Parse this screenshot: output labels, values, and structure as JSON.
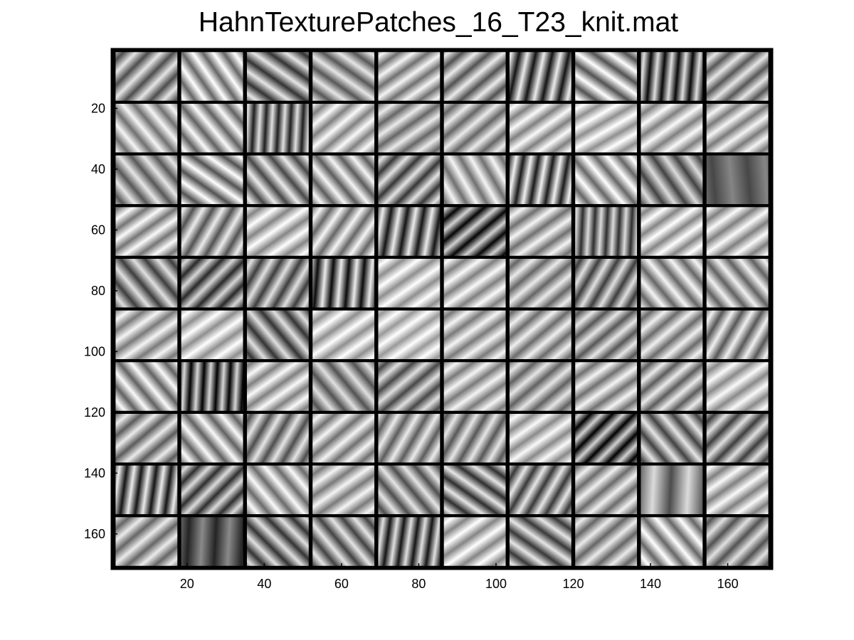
{
  "figure": {
    "title": "HahnTexturePatches_16_T23_knit.mat"
  },
  "chart_data": {
    "type": "heatmap",
    "title": "HahnTexturePatches_16_T23_knit.mat",
    "xlabel": "",
    "ylabel": "",
    "xlim": [
      0.5,
      171.5
    ],
    "ylim": [
      0.5,
      171.5
    ],
    "y_reversed": true,
    "x_ticks": [
      20,
      40,
      60,
      80,
      100,
      120,
      140,
      160
    ],
    "y_ticks": [
      20,
      40,
      60,
      80,
      100,
      120,
      140,
      160
    ],
    "x_tick_labels": [
      "20",
      "40",
      "60",
      "80",
      "100",
      "120",
      "140",
      "160"
    ],
    "y_tick_labels": [
      "20",
      "40",
      "60",
      "80",
      "100",
      "120",
      "140",
      "160"
    ],
    "colormap": "gray",
    "grid": {
      "rows": 10,
      "cols": 10,
      "patch_size": 16,
      "separator": 1
    },
    "grid_lines": false,
    "separator_color": "#000000",
    "patches": [
      [
        {
          "angle": 45,
          "wl": 4.6,
          "c": 0.3,
          "m": 0.6
        },
        {
          "angle": -35,
          "wl": 4.4,
          "c": 0.32,
          "m": 0.72
        },
        {
          "angle": -55,
          "wl": 4.8,
          "c": 0.35,
          "m": 0.55
        },
        {
          "angle": -55,
          "wl": 4.6,
          "c": 0.28,
          "m": 0.62
        },
        {
          "angle": 55,
          "wl": 4.4,
          "c": 0.26,
          "m": 0.7
        },
        {
          "angle": 50,
          "wl": 4.6,
          "c": 0.3,
          "m": 0.62
        },
        {
          "angle": 12,
          "wl": 4.2,
          "c": 0.42,
          "m": 0.5
        },
        {
          "angle": -55,
          "wl": 4.8,
          "c": 0.36,
          "m": 0.68
        },
        {
          "angle": 5,
          "wl": 3.6,
          "c": 0.42,
          "m": 0.45
        },
        {
          "angle": 50,
          "wl": 4.4,
          "c": 0.28,
          "m": 0.62
        }
      ],
      [
        {
          "angle": -40,
          "wl": 4.6,
          "c": 0.26,
          "m": 0.7
        },
        {
          "angle": -40,
          "wl": 4.6,
          "c": 0.3,
          "m": 0.68
        },
        {
          "angle": 3,
          "wl": 3.2,
          "c": 0.38,
          "m": 0.5
        },
        {
          "angle": 50,
          "wl": 4.4,
          "c": 0.24,
          "m": 0.74
        },
        {
          "angle": 55,
          "wl": 4.6,
          "c": 0.26,
          "m": 0.66
        },
        {
          "angle": 50,
          "wl": 4.6,
          "c": 0.26,
          "m": 0.66
        },
        {
          "angle": 55,
          "wl": 4.4,
          "c": 0.24,
          "m": 0.74
        },
        {
          "angle": 60,
          "wl": 4.4,
          "c": 0.22,
          "m": 0.78
        },
        {
          "angle": 55,
          "wl": 4.6,
          "c": 0.24,
          "m": 0.74
        },
        {
          "angle": 55,
          "wl": 4.4,
          "c": 0.24,
          "m": 0.72
        }
      ],
      [
        {
          "angle": -40,
          "wl": 4.8,
          "c": 0.28,
          "m": 0.62
        },
        {
          "angle": -55,
          "wl": 4.6,
          "c": 0.34,
          "m": 0.66
        },
        {
          "angle": -40,
          "wl": 4.6,
          "c": 0.32,
          "m": 0.6
        },
        {
          "angle": -40,
          "wl": 4.6,
          "c": 0.3,
          "m": 0.66
        },
        {
          "angle": 45,
          "wl": 4.4,
          "c": 0.34,
          "m": 0.55
        },
        {
          "angle": -30,
          "wl": 4.6,
          "c": 0.26,
          "m": 0.7
        },
        {
          "angle": 10,
          "wl": 3.8,
          "c": 0.42,
          "m": 0.52
        },
        {
          "angle": -40,
          "wl": 4.6,
          "c": 0.3,
          "m": 0.7
        },
        {
          "angle": -35,
          "wl": 4.8,
          "c": 0.3,
          "m": 0.56
        },
        {
          "angle": -5,
          "wl": 9.0,
          "c": 0.12,
          "m": 0.4
        }
      ],
      [
        {
          "angle": 55,
          "wl": 4.4,
          "c": 0.26,
          "m": 0.72
        },
        {
          "angle": 30,
          "wl": 4.4,
          "c": 0.3,
          "m": 0.62
        },
        {
          "angle": 55,
          "wl": 4.6,
          "c": 0.24,
          "m": 0.76
        },
        {
          "angle": 35,
          "wl": 4.4,
          "c": 0.28,
          "m": 0.68
        },
        {
          "angle": 10,
          "wl": 4.2,
          "c": 0.42,
          "m": 0.5
        },
        {
          "angle": 50,
          "wl": 4.2,
          "c": 0.4,
          "m": 0.42
        },
        {
          "angle": 55,
          "wl": 4.6,
          "c": 0.26,
          "m": 0.7
        },
        {
          "angle": 3,
          "wl": 3.2,
          "c": 0.34,
          "m": 0.52
        },
        {
          "angle": 55,
          "wl": 4.4,
          "c": 0.24,
          "m": 0.76
        },
        {
          "angle": 55,
          "wl": 4.6,
          "c": 0.24,
          "m": 0.74
        }
      ],
      [
        {
          "angle": -40,
          "wl": 4.8,
          "c": 0.32,
          "m": 0.56
        },
        {
          "angle": 45,
          "wl": 4.2,
          "c": 0.34,
          "m": 0.5
        },
        {
          "angle": 30,
          "wl": 4.4,
          "c": 0.32,
          "m": 0.56
        },
        {
          "angle": 5,
          "wl": 4.0,
          "c": 0.44,
          "m": 0.48
        },
        {
          "angle": 55,
          "wl": 4.6,
          "c": 0.22,
          "m": 0.78
        },
        {
          "angle": 55,
          "wl": 4.6,
          "c": 0.24,
          "m": 0.74
        },
        {
          "angle": 50,
          "wl": 4.6,
          "c": 0.26,
          "m": 0.66
        },
        {
          "angle": 30,
          "wl": 4.2,
          "c": 0.32,
          "m": 0.56
        },
        {
          "angle": -40,
          "wl": 4.6,
          "c": 0.28,
          "m": 0.68
        },
        {
          "angle": -40,
          "wl": 4.6,
          "c": 0.28,
          "m": 0.66
        }
      ],
      [
        {
          "angle": 55,
          "wl": 4.6,
          "c": 0.24,
          "m": 0.72
        },
        {
          "angle": 55,
          "wl": 4.6,
          "c": 0.22,
          "m": 0.78
        },
        {
          "angle": -40,
          "wl": 4.8,
          "c": 0.34,
          "m": 0.54
        },
        {
          "angle": 55,
          "wl": 4.6,
          "c": 0.22,
          "m": 0.78
        },
        {
          "angle": 55,
          "wl": 4.4,
          "c": 0.2,
          "m": 0.8
        },
        {
          "angle": 55,
          "wl": 4.6,
          "c": 0.24,
          "m": 0.72
        },
        {
          "angle": 50,
          "wl": 4.6,
          "c": 0.26,
          "m": 0.68
        },
        {
          "angle": 50,
          "wl": 4.4,
          "c": 0.28,
          "m": 0.62
        },
        {
          "angle": 50,
          "wl": 4.6,
          "c": 0.26,
          "m": 0.68
        },
        {
          "angle": 30,
          "wl": 4.4,
          "c": 0.3,
          "m": 0.64
        }
      ],
      [
        {
          "angle": -40,
          "wl": 4.6,
          "c": 0.3,
          "m": 0.68
        },
        {
          "angle": 3,
          "wl": 3.4,
          "c": 0.42,
          "m": 0.42
        },
        {
          "angle": 55,
          "wl": 4.4,
          "c": 0.24,
          "m": 0.74
        },
        {
          "angle": -40,
          "wl": 4.8,
          "c": 0.28,
          "m": 0.6
        },
        {
          "angle": 50,
          "wl": 4.4,
          "c": 0.3,
          "m": 0.58
        },
        {
          "angle": 55,
          "wl": 4.6,
          "c": 0.24,
          "m": 0.72
        },
        {
          "angle": 50,
          "wl": 4.6,
          "c": 0.26,
          "m": 0.64
        },
        {
          "angle": 55,
          "wl": 4.6,
          "c": 0.26,
          "m": 0.7
        },
        {
          "angle": 50,
          "wl": 4.4,
          "c": 0.28,
          "m": 0.64
        },
        {
          "angle": 55,
          "wl": 4.6,
          "c": 0.22,
          "m": 0.76
        }
      ],
      [
        {
          "angle": 50,
          "wl": 4.6,
          "c": 0.28,
          "m": 0.64
        },
        {
          "angle": -40,
          "wl": 4.6,
          "c": 0.3,
          "m": 0.68
        },
        {
          "angle": 30,
          "wl": 4.4,
          "c": 0.3,
          "m": 0.6
        },
        {
          "angle": 50,
          "wl": 4.6,
          "c": 0.26,
          "m": 0.7
        },
        {
          "angle": 30,
          "wl": 4.4,
          "c": 0.28,
          "m": 0.64
        },
        {
          "angle": 30,
          "wl": 4.4,
          "c": 0.28,
          "m": 0.62
        },
        {
          "angle": 55,
          "wl": 4.4,
          "c": 0.22,
          "m": 0.76
        },
        {
          "angle": 45,
          "wl": 4.0,
          "c": 0.42,
          "m": 0.4
        },
        {
          "angle": -40,
          "wl": 4.6,
          "c": 0.32,
          "m": 0.58
        },
        {
          "angle": 45,
          "wl": 4.4,
          "c": 0.32,
          "m": 0.56
        }
      ],
      [
        {
          "angle": 8,
          "wl": 3.8,
          "c": 0.42,
          "m": 0.5
        },
        {
          "angle": 45,
          "wl": 4.2,
          "c": 0.34,
          "m": 0.52
        },
        {
          "angle": -40,
          "wl": 4.6,
          "c": 0.28,
          "m": 0.7
        },
        {
          "angle": 55,
          "wl": 4.6,
          "c": 0.24,
          "m": 0.72
        },
        {
          "angle": -40,
          "wl": 4.6,
          "c": 0.3,
          "m": 0.6
        },
        {
          "angle": -55,
          "wl": 4.4,
          "c": 0.36,
          "m": 0.54
        },
        {
          "angle": 30,
          "wl": 4.2,
          "c": 0.34,
          "m": 0.56
        },
        {
          "angle": 50,
          "wl": 4.6,
          "c": 0.26,
          "m": 0.68
        },
        {
          "angle": 3,
          "wl": 9.0,
          "c": 0.28,
          "m": 0.58
        },
        {
          "angle": 55,
          "wl": 4.6,
          "c": 0.24,
          "m": 0.74
        }
      ],
      [
        {
          "angle": 50,
          "wl": 4.6,
          "c": 0.26,
          "m": 0.66
        },
        {
          "angle": 3,
          "wl": 7.0,
          "c": 0.2,
          "m": 0.34
        },
        {
          "angle": -45,
          "wl": 4.6,
          "c": 0.34,
          "m": 0.54
        },
        {
          "angle": -40,
          "wl": 4.6,
          "c": 0.32,
          "m": 0.58
        },
        {
          "angle": 8,
          "wl": 3.6,
          "c": 0.4,
          "m": 0.48
        },
        {
          "angle": 55,
          "wl": 4.6,
          "c": 0.24,
          "m": 0.76
        },
        {
          "angle": -55,
          "wl": 4.6,
          "c": 0.34,
          "m": 0.56
        },
        {
          "angle": 50,
          "wl": 4.6,
          "c": 0.26,
          "m": 0.66
        },
        {
          "angle": -40,
          "wl": 4.6,
          "c": 0.3,
          "m": 0.7
        },
        {
          "angle": 45,
          "wl": 4.6,
          "c": 0.28,
          "m": 0.6
        }
      ]
    ]
  }
}
